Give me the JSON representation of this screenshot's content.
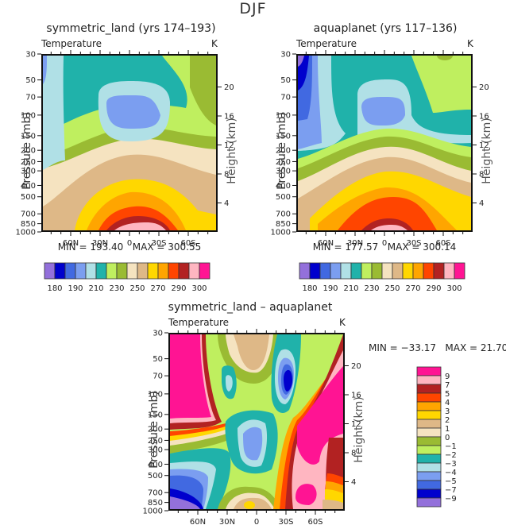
{
  "page": {
    "title": "DJF"
  },
  "colors": {
    "temp": [
      "#9370db",
      "#0000cd",
      "#4169e1",
      "#7b9ef0",
      "#b0e0e6",
      "#20b2aa",
      "#bfef5f",
      "#9abb33",
      "#f5e3c0",
      "#deb887",
      "#ffd700",
      "#ffa500",
      "#ff4500",
      "#b22222",
      "#ffb6c1",
      "#ff1493"
    ],
    "diff": [
      "#9370db",
      "#0000cd",
      "#4169e1",
      "#7b9ef0",
      "#b0e0e6",
      "#20b2aa",
      "#bfef5f",
      "#9abb33",
      "#f5e3c0",
      "#deb887",
      "#ffd700",
      "#ffa500",
      "#ff4500",
      "#b22222",
      "#ffb6c1",
      "#ff1493"
    ]
  },
  "chart_data": [
    {
      "type": "heatmap",
      "title": "symmetric_land (yrs 174–193)",
      "left_subtitle": "Temperature",
      "right_subtitle": "K",
      "xlabel": "",
      "ylabel": "Pressure (mb)",
      "ylabel_right": "Height (km)",
      "xticks": [
        "60N",
        "30N",
        "0",
        "30S",
        "60S"
      ],
      "yticks": [
        "30",
        "50",
        "70",
        "100",
        "150",
        "200",
        "250",
        "300",
        "400",
        "500",
        "700",
        "850",
        "1000"
      ],
      "yticks_right": [
        "20",
        "16",
        "12",
        "8",
        "4"
      ],
      "xlim": [
        "90N",
        "90S"
      ],
      "ylim": [
        1000,
        30
      ],
      "min_label": "MIN = 193.40",
      "max_label": "MAX = 300.55",
      "min": 193.4,
      "max": 300.55,
      "colorbar_labels": [
        "180",
        "190",
        "210",
        "230",
        "250",
        "270",
        "290",
        "300"
      ],
      "contour_levels": [
        180,
        185,
        190,
        200,
        210,
        220,
        230,
        240,
        250,
        260,
        270,
        280,
        290,
        295,
        300
      ],
      "description": "Zonal-mean temperature; warm (>290 K) near surface at equator/30S, cold core (~200 K) near 100 mb over equator"
    },
    {
      "type": "heatmap",
      "title": "aquaplanet (yrs 117–136)",
      "left_subtitle": "Temperature",
      "right_subtitle": "K",
      "xlabel": "",
      "ylabel": "Pressure (mb)",
      "ylabel_right": "Height (km)",
      "xticks": [
        "60N",
        "30N",
        "0",
        "30S",
        "60S"
      ],
      "yticks": [
        "30",
        "50",
        "70",
        "100",
        "150",
        "200",
        "250",
        "300",
        "400",
        "500",
        "700",
        "850",
        "1000"
      ],
      "yticks_right": [
        "20",
        "16",
        "12",
        "8",
        "4"
      ],
      "xlim": [
        "90N",
        "90S"
      ],
      "ylim": [
        1000,
        30
      ],
      "min_label": "MIN = 177.57",
      "max_label": "MAX = 300.14",
      "min": 177.57,
      "max": 300.14,
      "colorbar_labels": [
        "180",
        "190",
        "210",
        "230",
        "250",
        "270",
        "290",
        "300"
      ],
      "contour_levels": [
        180,
        185,
        190,
        200,
        210,
        220,
        230,
        240,
        250,
        260,
        270,
        280,
        290,
        295,
        300
      ],
      "description": "Zonal-mean temperature; cold polar vortex (<180 K) at 30 mb near north pole"
    },
    {
      "type": "heatmap",
      "title": "symmetric_land – aquaplanet",
      "left_subtitle": "Temperature",
      "right_subtitle": "K",
      "xlabel": "",
      "ylabel": "Pressure (mb)",
      "ylabel_right": "Height (km)",
      "xticks": [
        "60N",
        "30N",
        "0",
        "30S",
        "60S"
      ],
      "yticks": [
        "30",
        "50",
        "70",
        "100",
        "150",
        "200",
        "250",
        "300",
        "400",
        "500",
        "700",
        "850",
        "1000"
      ],
      "yticks_right": [
        "20",
        "16",
        "12",
        "8",
        "4"
      ],
      "xlim": [
        "90N",
        "90S"
      ],
      "ylim": [
        1000,
        30
      ],
      "min_label": "MIN = −33.17",
      "max_label": "MAX =  21.70",
      "min": -33.17,
      "max": 21.7,
      "colorbar_labels": [
        "9",
        "7",
        "5",
        "4",
        "3",
        "2",
        "1",
        "0",
        "−1",
        "−2",
        "−3",
        "−4",
        "−5",
        "−7",
        "−9"
      ],
      "contour_levels": [
        -9,
        -7,
        -5,
        -4,
        -3,
        -2,
        -1,
        0,
        1,
        2,
        3,
        4,
        5,
        7,
        9
      ],
      "description": "Temperature difference; strong warming (>9 K) in NH high-latitude stratosphere and SH mid-latitudes, cooling (<-9 K) near NH surface"
    }
  ]
}
